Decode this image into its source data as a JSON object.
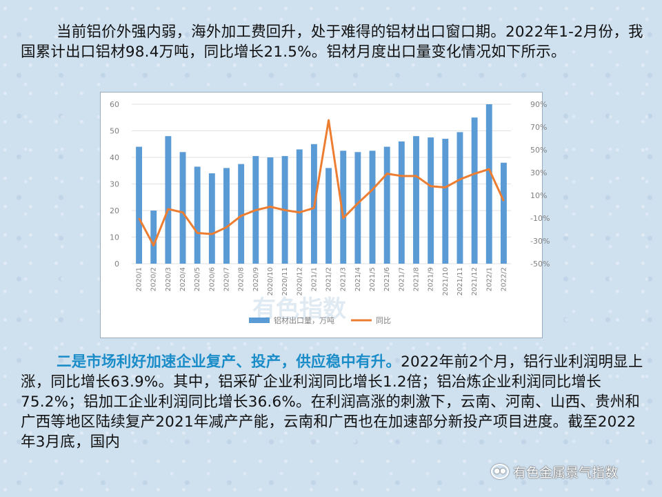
{
  "intro_text": "当前铝价外强内弱，海外加工费回升，处于难得的铝材出口窗口期。2022年1-2月份，我国累计出口铝材98.4万吨，同比增长21.5%。铝材月度出口量变化情况如下所示。",
  "section_heading": "二是市场利好加速企业复产、投产，供应稳中有升。",
  "section_body": "2022年前2个月，铝行业利润明显上涨，同比增长63.9%。其中，铝采矿企业利润同比增长1.2倍；铝冶炼企业利润同比增长75.2%；铝加工企业利润同比增长36.6%。在利润高涨的刺激下，云南、河南、山西、贵州和广西等地区陆续复产2021年减产产能，云南和广西也在加速部分新投产项目进度。截至2022年3月底，国内",
  "watermark": "有色金属景气指数",
  "chart_watermark": "有色指数",
  "colors": {
    "bar": "#5b9bd5",
    "line": "#ed7d31",
    "heading": "#1a8cc8"
  },
  "chart_data": {
    "type": "bar+line",
    "categories": [
      "2020/1",
      "2020/2",
      "2020/3",
      "2020/4",
      "2020/5",
      "2020/6",
      "2020/7",
      "2020/8",
      "2020/9",
      "2020/10",
      "2020/11",
      "2020/12",
      "2021/1",
      "2021/2",
      "2021/3",
      "2021/4",
      "2021/5",
      "2021/6",
      "2021/7",
      "2021/8",
      "2021/9",
      "2021/10",
      "2021/11",
      "2021/12",
      "2022/1",
      "2022/2"
    ],
    "series": [
      {
        "name": "铝材出口量，万吨",
        "type": "bar",
        "axis": "left",
        "values": [
          44,
          20,
          48,
          42,
          36.5,
          34,
          36,
          37.5,
          40.5,
          40,
          40.5,
          43,
          45,
          36,
          42.5,
          42,
          42.5,
          44,
          46,
          48,
          47.5,
          47,
          49.5,
          55,
          60,
          38
        ]
      },
      {
        "name": "同比",
        "type": "line",
        "axis": "right",
        "unit": "%",
        "values": [
          -10,
          -34,
          -2,
          -5,
          -23,
          -24,
          -18,
          -8,
          -3,
          0,
          -3,
          -5,
          -1,
          76,
          -10,
          3,
          15,
          29,
          27,
          27,
          18,
          17,
          24,
          29,
          33,
          5
        ]
      }
    ],
    "y_left": {
      "min": 0,
      "max": 60,
      "ticks": [
        0,
        10,
        20,
        30,
        40,
        50,
        60
      ]
    },
    "y_right": {
      "min": -50,
      "max": 90,
      "ticks": [
        "-50%",
        "-30%",
        "-10%",
        "10%",
        "30%",
        "50%",
        "70%",
        "90%"
      ]
    },
    "legend_position": "bottom",
    "grid": true
  }
}
